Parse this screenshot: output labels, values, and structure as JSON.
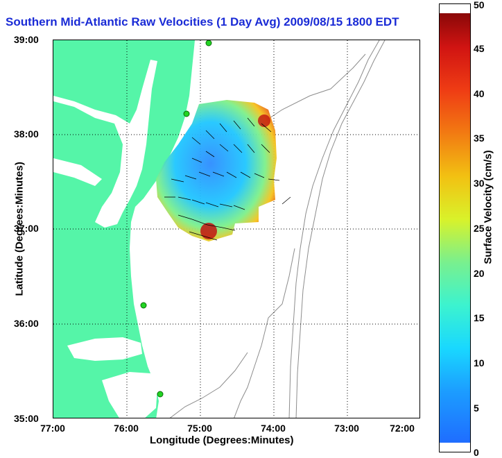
{
  "title": "Southern Mid-Atlantic Raw Velocities (1 Day Avg) 2009/08/15 1800 EDT",
  "xlabel": "Longitude (Degrees:Minutes)",
  "ylabel": "Latitude (Degrees:Minutes)",
  "colorbar": {
    "label": "Surface Velocity (cm/s)",
    "ticks": [
      "0",
      "5",
      "10",
      "15",
      "20",
      "25",
      "30",
      "35",
      "40",
      "45",
      "50"
    ],
    "range": [
      0,
      50
    ]
  },
  "x_ticks": [
    "77:00",
    "76:00",
    "75:00",
    "74:00",
    "73:00",
    "72:00"
  ],
  "y_ticks": [
    "39:00",
    "38:00",
    "37:00",
    "36:00",
    "35:00"
  ],
  "colors": {
    "land": "#55f5a8",
    "title": "#1a2bd6",
    "station": "#22d422",
    "bathy": "#8c8c8c"
  },
  "stations": [
    "station-north",
    "station-md",
    "station-va",
    "station-nc"
  ]
}
